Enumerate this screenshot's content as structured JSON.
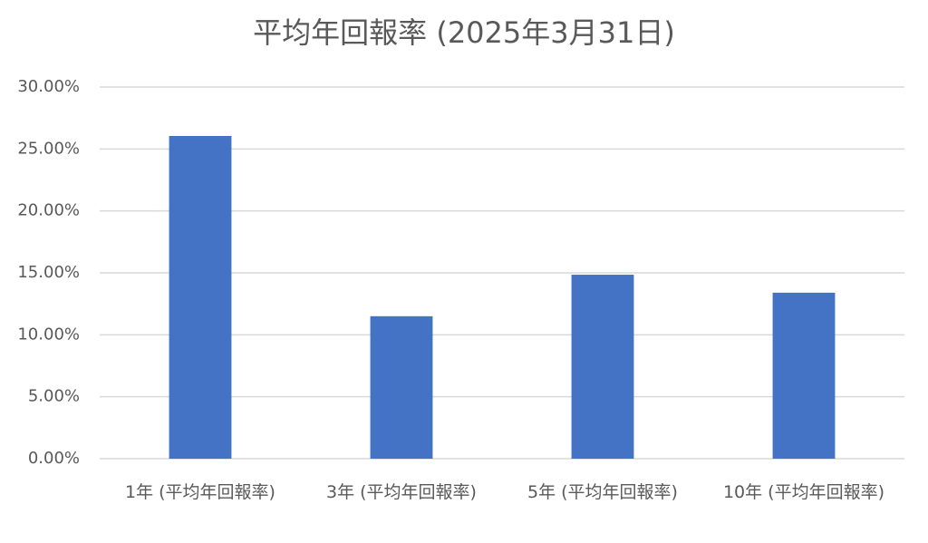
{
  "chart_data": {
    "type": "bar",
    "title": "平均年回報率 (2025年3月31日)",
    "categories": [
      "1年 (平均年回報率)",
      "3年 (平均年回報率)",
      "5年 (平均年回報率)",
      "10年 (平均年回報率)"
    ],
    "values": [
      26.05,
      11.5,
      14.85,
      13.4
    ],
    "color": "#4472c4",
    "ylim": [
      0,
      30
    ],
    "yticks": [
      {
        "value": 0,
        "label": "0.00%"
      },
      {
        "value": 5,
        "label": "5.00%"
      },
      {
        "value": 10,
        "label": "10.00%"
      },
      {
        "value": 15,
        "label": "15.00%"
      },
      {
        "value": 20,
        "label": "20.00%"
      },
      {
        "value": 25,
        "label": "25.00%"
      },
      {
        "value": 30,
        "label": "30.00%"
      }
    ],
    "grid": true
  }
}
